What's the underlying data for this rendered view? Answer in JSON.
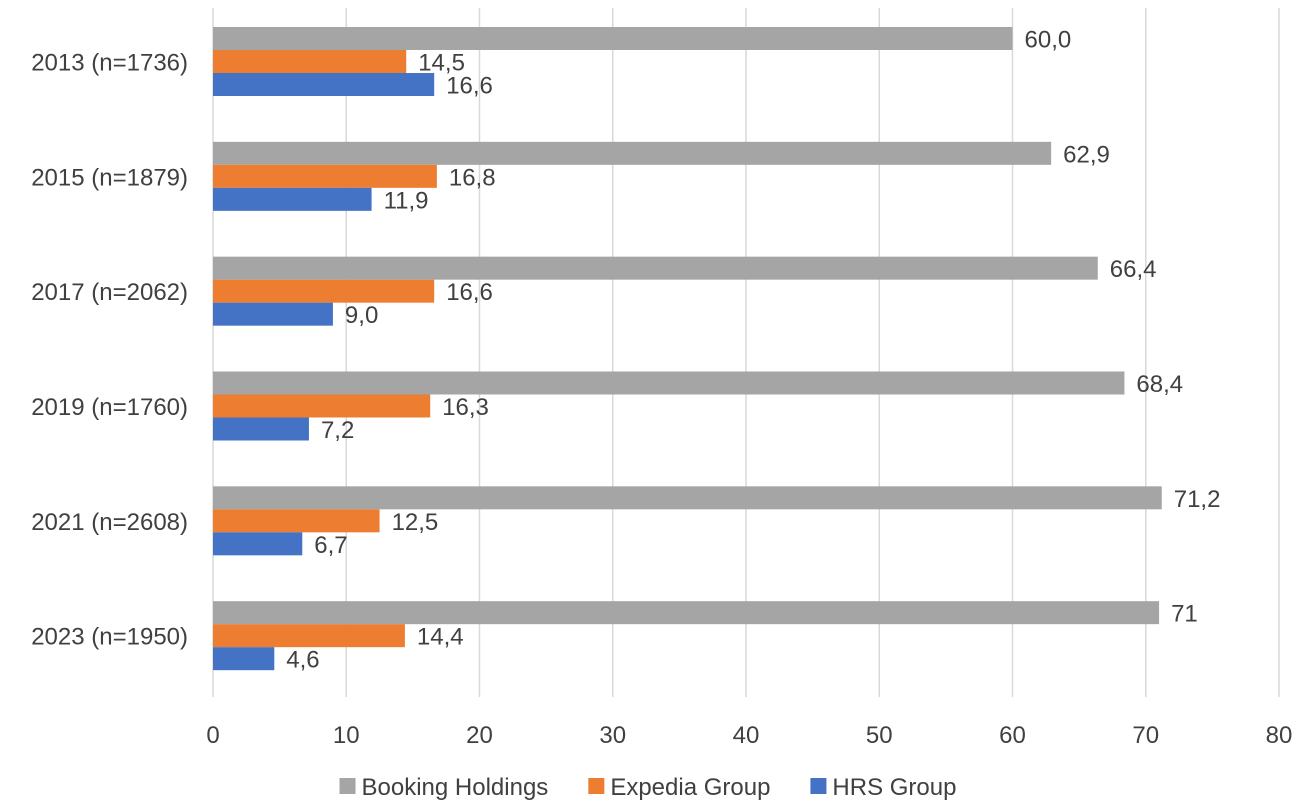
{
  "chart_data": {
    "type": "bar",
    "orientation": "horizontal",
    "categories": [
      "2013 (n=1736)",
      "2015 (n=1879)",
      "2017 (n=2062)",
      "2019 (n=1760)",
      "2021 (n=2608)",
      "2023 (n=1950)"
    ],
    "series": [
      {
        "name": "Booking Holdings",
        "color": "#a5a5a5",
        "values": [
          60.0,
          62.9,
          66.4,
          68.4,
          71.2,
          71
        ],
        "labels": [
          "60,0",
          "62,9",
          "66,4",
          "68,4",
          "71,2",
          "71"
        ]
      },
      {
        "name": "Expedia Group",
        "color": "#ed7d31",
        "values": [
          14.5,
          16.8,
          16.6,
          16.3,
          12.5,
          14.4
        ],
        "labels": [
          "14,5",
          "16,8",
          "16,6",
          "16,3",
          "12,5",
          "14,4"
        ]
      },
      {
        "name": "HRS Group",
        "color": "#4472c4",
        "values": [
          16.6,
          11.9,
          9.0,
          7.2,
          6.7,
          4.6
        ],
        "labels": [
          "16,6",
          "11,9",
          "9,0",
          "7,2",
          "6,7",
          "4,6"
        ]
      }
    ],
    "xlim": [
      0,
      80
    ],
    "xticks": [
      0,
      10,
      20,
      30,
      40,
      50,
      60,
      70,
      80
    ],
    "title": "",
    "xlabel": "",
    "ylabel": "",
    "grid": "vertical",
    "legend": "bottom"
  }
}
